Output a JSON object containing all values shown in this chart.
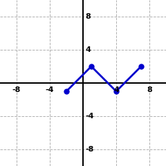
{
  "segments": [
    {
      "x": [
        -2,
        1
      ],
      "y": [
        -1,
        2
      ]
    },
    {
      "x": [
        1,
        4
      ],
      "y": [
        2,
        -1
      ]
    },
    {
      "x": [
        4,
        7
      ],
      "y": [
        -1,
        2
      ]
    }
  ],
  "points": [
    [
      -2,
      -1
    ],
    [
      1,
      2
    ],
    [
      4,
      -1
    ],
    [
      7,
      2
    ]
  ],
  "xlim": [
    -10,
    10
  ],
  "ylim": [
    -10,
    10
  ],
  "xticks": [
    -8,
    -4,
    4,
    8
  ],
  "yticks": [
    -8,
    -4,
    4,
    8
  ],
  "line_color": "#0000cc",
  "point_color": "#0000cc",
  "grid_color": "#b0b0b0",
  "background_color": "#ffffff",
  "axis_color": "#000000",
  "line_width": 2.0,
  "point_size": 5,
  "tick_fontsize": 8
}
